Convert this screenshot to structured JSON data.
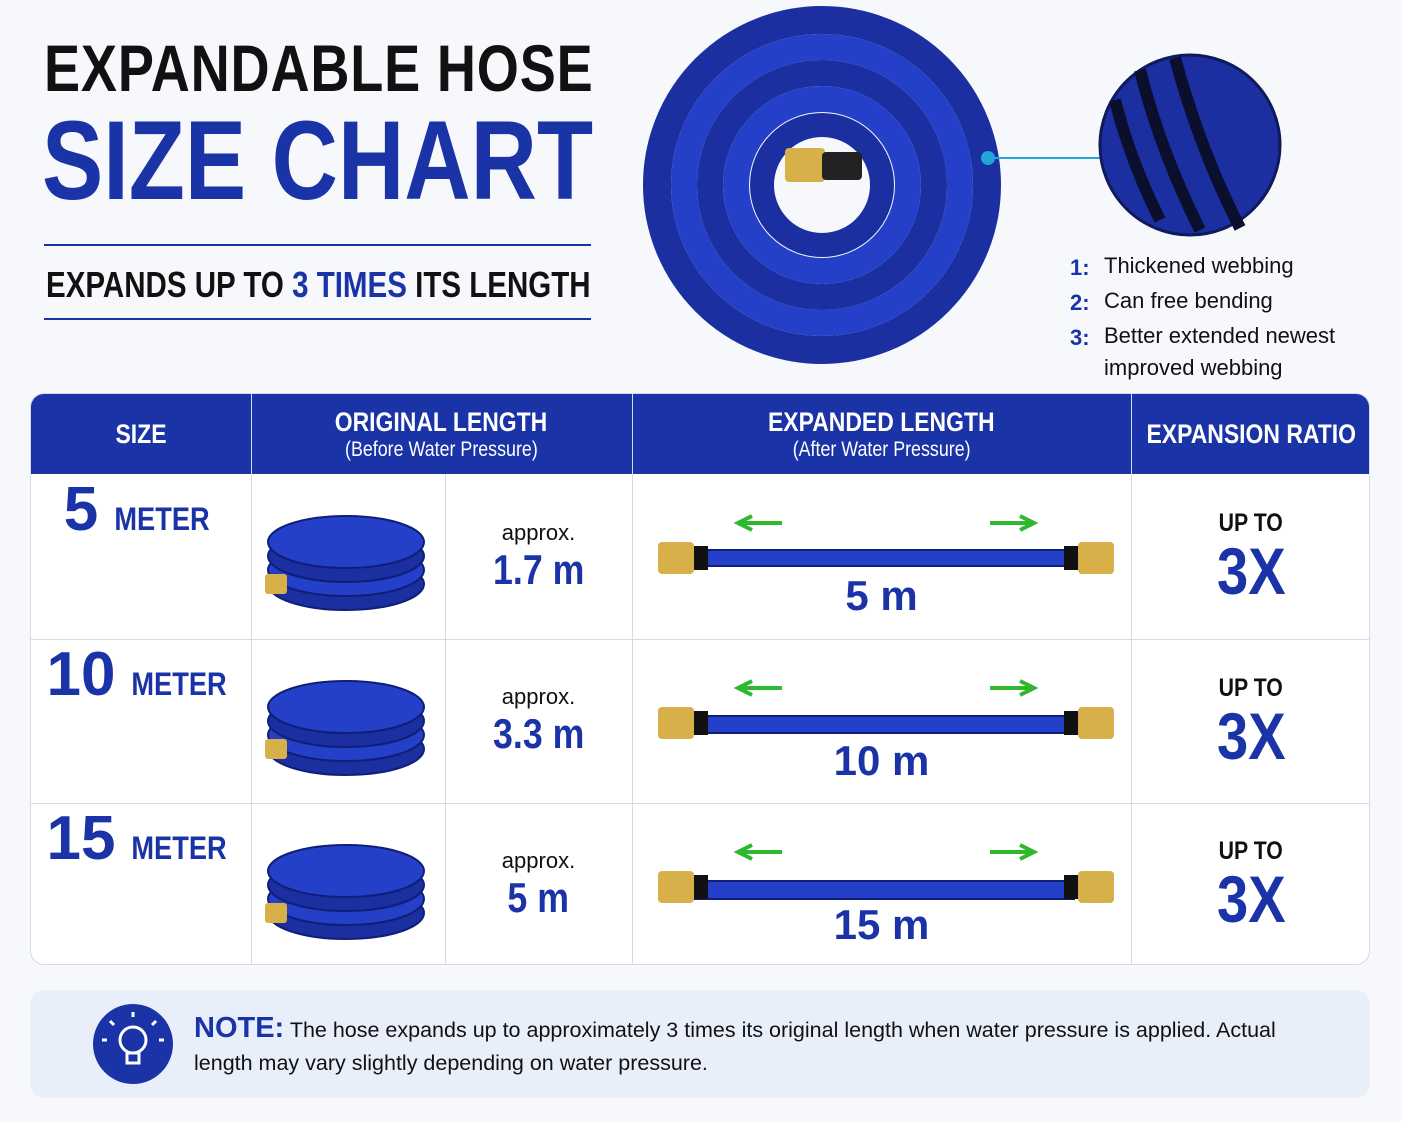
{
  "header": {
    "title_line1": "EXPANDABLE HOSE",
    "title_line2": "SIZE CHART",
    "subtitle": {
      "before": "EXPANDS UP TO",
      "highlight": "3 TIMES",
      "after": "ITS LENGTH"
    }
  },
  "features": [
    {
      "number": "1:",
      "text": "Thickened webbing"
    },
    {
      "number": "2:",
      "text": "Can free bending"
    },
    {
      "number": "3:",
      "text": "Better extended newest improved webbing"
    }
  ],
  "table": {
    "columns": [
      {
        "title": "SIZE"
      },
      {
        "title": "ORIGINAL LENGTH",
        "subtitle": "(Before Water Pressure)"
      },
      {
        "title": "EXPANDED LENGTH",
        "subtitle": "(After Water Pressure)"
      },
      {
        "title": "EXPANSION RATIO"
      }
    ],
    "rows": [
      {
        "size": "5",
        "unit": "METER",
        "original_prefix": "approx.",
        "original": "1.7 m",
        "expanded": "5 m",
        "ratio_prefix": "UP TO",
        "ratio": "3X"
      },
      {
        "size": "10",
        "unit": "METER",
        "original_prefix": "approx.",
        "original": "3.3 m",
        "expanded": "10 m",
        "ratio_prefix": "UP TO",
        "ratio": "3X"
      },
      {
        "size": "15",
        "unit": "METER",
        "original_prefix": "approx.",
        "original": "5 m",
        "expanded": "15 m",
        "ratio_prefix": "UP TO",
        "ratio": "3X"
      }
    ]
  },
  "note": {
    "label": "NOTE:",
    "text": "The hose expands up to approximately 3 times its original length when water pressure is applied. Actual length may vary slightly depending on water pressure."
  }
}
